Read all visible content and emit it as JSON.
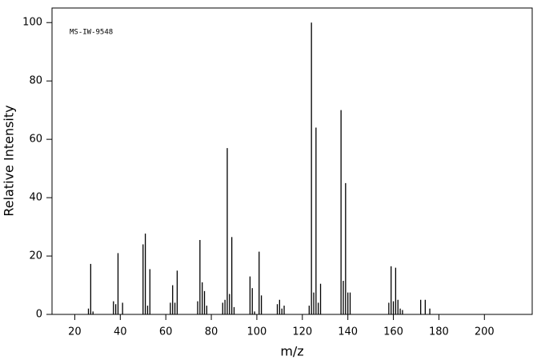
{
  "chart_data": {
    "type": "stick",
    "annotation": "MS-IW-9548",
    "xlabel": "m/z",
    "ylabel": "Relative Intensity",
    "xlim": [
      10,
      221
    ],
    "ylim": [
      0,
      105
    ],
    "xticks": [
      20,
      40,
      60,
      80,
      100,
      120,
      140,
      160,
      180,
      200
    ],
    "yticks": [
      0,
      20,
      40,
      60,
      80,
      100
    ],
    "color": "#000000",
    "x": [
      26,
      27,
      28,
      37,
      38,
      39,
      41,
      50,
      51,
      52,
      53,
      62,
      63,
      64,
      65,
      74,
      75,
      76,
      77,
      78,
      85,
      86,
      87,
      88,
      89,
      90,
      97,
      98,
      99,
      101,
      102,
      109,
      110,
      111,
      112,
      123,
      124,
      125,
      126,
      127,
      128,
      137,
      138,
      139,
      140,
      141,
      158,
      159,
      160,
      161,
      162,
      163,
      164,
      172,
      174,
      176
    ],
    "values": [
      2,
      17.3,
      1,
      4.5,
      3.5,
      21,
      4,
      24,
      27.7,
      3,
      15.5,
      4,
      10,
      4,
      15,
      4.5,
      25.5,
      11,
      8,
      3,
      4,
      5,
      57,
      7,
      26.5,
      2.5,
      13,
      9,
      1,
      21.5,
      6.5,
      3.5,
      5,
      2,
      3,
      3,
      100,
      7.5,
      64,
      4,
      10.5,
      70,
      11.5,
      45,
      7.5,
      7.5,
      4,
      16.5,
      4.5,
      16,
      5,
      2,
      1.5,
      5,
      5,
      2
    ]
  }
}
